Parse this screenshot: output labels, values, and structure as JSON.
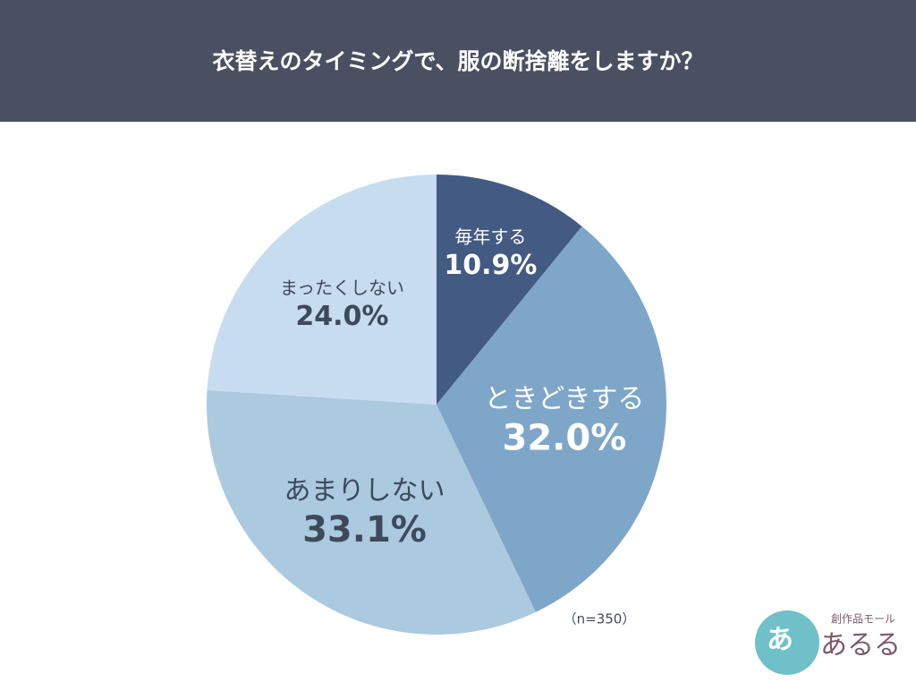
{
  "chart_data": {
    "type": "pie",
    "title": "衣替えのタイミングで、服の断捨離をしますか？",
    "categories": [
      "毎年する",
      "ときどきする",
      "あまりしない",
      "まったくしない"
    ],
    "values": [
      10.9,
      32.0,
      33.1,
      24.0
    ],
    "value_labels": [
      "10.9%",
      "32.0%",
      "33.1%",
      "24.0%"
    ],
    "colors": [
      "#435a82",
      "#7ea6c9",
      "#abc9df",
      "#c7dcee"
    ],
    "label_colors": [
      "#ffffff",
      "#ffffff",
      "#3d4a5c",
      "#3d4a5c"
    ],
    "annotation": "（n=350）"
  },
  "logo": {
    "small": "創作品モール",
    "main": "あるる",
    "icon": "あ"
  }
}
